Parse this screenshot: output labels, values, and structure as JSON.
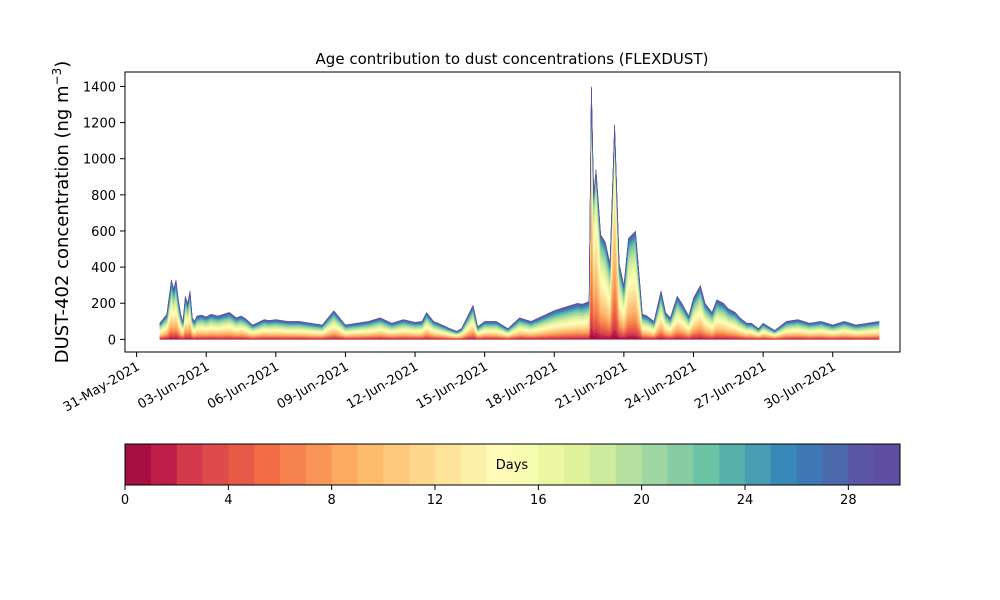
{
  "chart_data": {
    "type": "area",
    "stacked": true,
    "title": "Age contribution to dust concentrations (FLEXDUST)",
    "ylabel_main": "DUST-402 concentration (ng m",
    "ylabel_sup": "−3",
    "ylabel_close": ")",
    "xlabel": "",
    "ylim": [
      -70,
      1480
    ],
    "yticks": [
      0,
      200,
      400,
      600,
      800,
      1000,
      1200,
      1400
    ],
    "xlim": [
      -0.5,
      32.9
    ],
    "xticks": [
      0,
      3,
      6,
      9,
      12,
      15,
      18,
      21,
      24,
      27,
      30
    ],
    "xtick_labels": [
      "31-May-2021",
      "03-Jun-2021",
      "06-Jun-2021",
      "09-Jun-2021",
      "12-Jun-2021",
      "15-Jun-2021",
      "18-Jun-2021",
      "21-Jun-2021",
      "24-Jun-2021",
      "27-Jun-2021",
      "30-Jun-2021"
    ],
    "grid": false,
    "total_series": {
      "x": [
        1.0,
        1.3,
        1.5,
        1.6,
        1.7,
        1.8,
        1.9,
        2.0,
        2.1,
        2.2,
        2.3,
        2.4,
        2.5,
        2.6,
        2.8,
        3.0,
        3.2,
        3.5,
        4.0,
        4.3,
        4.5,
        4.7,
        5.0,
        5.5,
        5.7,
        6.0,
        6.5,
        7.0,
        7.5,
        8.0,
        8.5,
        9.0,
        9.5,
        10.0,
        10.5,
        11.0,
        11.5,
        12.0,
        12.3,
        12.5,
        12.8,
        13.0,
        13.5,
        13.8,
        14.0,
        14.5,
        14.7,
        14.8,
        15.0,
        15.5,
        16.0,
        16.5,
        17.0,
        17.5,
        18.0,
        18.5,
        19.0,
        19.2,
        19.5,
        19.6,
        19.7,
        19.8,
        20.0,
        20.2,
        20.4,
        20.6,
        20.8,
        21.0,
        21.2,
        21.5,
        21.8,
        22.0,
        22.3,
        22.6,
        22.8,
        23.0,
        23.3,
        23.5,
        23.8,
        24.0,
        24.3,
        24.5,
        24.8,
        25.0,
        25.3,
        25.5,
        25.8,
        26.0,
        26.3,
        26.5,
        26.8,
        27.0,
        27.5,
        28.0,
        28.5,
        29.0,
        29.5,
        30.0,
        30.5,
        31.0,
        31.5,
        32.0
      ],
      "y": [
        90,
        140,
        330,
        280,
        330,
        220,
        140,
        100,
        240,
        200,
        270,
        120,
        100,
        130,
        135,
        125,
        140,
        130,
        150,
        120,
        130,
        115,
        80,
        110,
        105,
        110,
        100,
        100,
        90,
        80,
        160,
        80,
        90,
        100,
        120,
        90,
        110,
        95,
        100,
        150,
        100,
        90,
        60,
        45,
        60,
        190,
        70,
        80,
        100,
        100,
        60,
        120,
        100,
        130,
        160,
        180,
        200,
        195,
        210,
        1400,
        800,
        940,
        580,
        540,
        420,
        1190,
        420,
        300,
        560,
        600,
        140,
        130,
        100,
        270,
        150,
        120,
        240,
        200,
        130,
        230,
        300,
        200,
        150,
        220,
        200,
        170,
        150,
        120,
        90,
        90,
        60,
        90,
        50,
        100,
        110,
        90,
        100,
        80,
        100,
        80,
        90,
        100
      ],
      "age_profile": "fresher_at_peaks"
    },
    "colorbar": {
      "label": "Days",
      "range": [
        0,
        30
      ],
      "n_bins": 30,
      "ticks": [
        0,
        4,
        8,
        12,
        16,
        20,
        24,
        28
      ],
      "colors": [
        "#a50f41",
        "#be1d47",
        "#d43a4c",
        "#dd4b4b",
        "#e75a47",
        "#f26c45",
        "#f6824f",
        "#f99657",
        "#fca962",
        "#fdbb6d",
        "#fdc87b",
        "#fed68c",
        "#fee39b",
        "#fef0a8",
        "#fffbb8",
        "#f7fcb3",
        "#ebf7a1",
        "#dff29b",
        "#cdea9e",
        "#b6e0a0",
        "#9ed6a4",
        "#86cca5",
        "#6dc3a5",
        "#57b0ab",
        "#489db1",
        "#3989b8",
        "#3d78b5",
        "#4c69ac",
        "#5a56a4",
        "#5e4fa2"
      ]
    }
  }
}
